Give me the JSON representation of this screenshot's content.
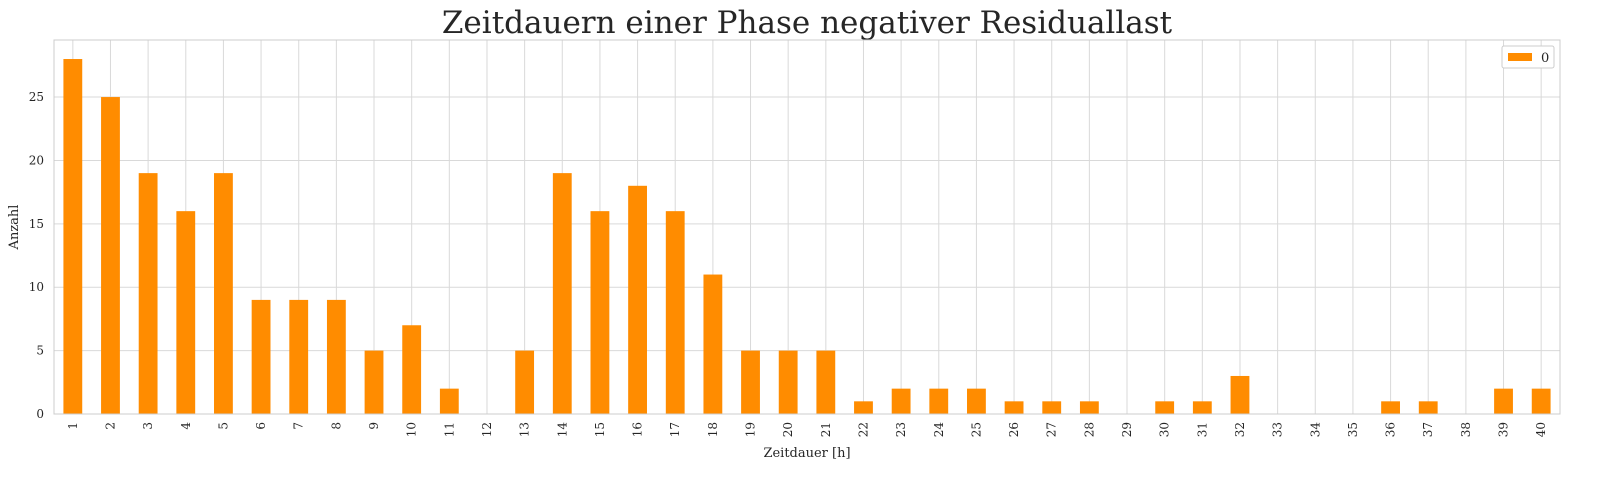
{
  "chart_data": {
    "type": "bar",
    "title": "Zeitdauern einer Phase negativer Residuallast",
    "xlabel": "Zeitdauer [h]",
    "ylabel": "Anzahl",
    "categories": [
      "1",
      "2",
      "3",
      "4",
      "5",
      "6",
      "7",
      "8",
      "9",
      "10",
      "11",
      "12",
      "13",
      "14",
      "15",
      "16",
      "17",
      "18",
      "19",
      "20",
      "21",
      "22",
      "23",
      "24",
      "25",
      "26",
      "27",
      "28",
      "29",
      "30",
      "31",
      "32",
      "33",
      "34",
      "35",
      "36",
      "37",
      "38",
      "39",
      "40"
    ],
    "series": [
      {
        "name": "0",
        "color": "#ff8c00",
        "values": [
          28,
          25,
          19,
          16,
          19,
          9,
          9,
          9,
          5,
          7,
          2,
          0,
          5,
          19,
          16,
          18,
          16,
          11,
          5,
          5,
          5,
          1,
          2,
          2,
          2,
          1,
          1,
          1,
          0,
          1,
          1,
          3,
          0,
          0,
          0,
          1,
          1,
          0,
          2,
          2
        ]
      }
    ],
    "ylim": [
      0,
      29.5
    ],
    "yticks": [
      0,
      5,
      10,
      15,
      20,
      25
    ],
    "grid": true,
    "legend_position": "top-right",
    "x_tick_rotation": "vertical"
  }
}
